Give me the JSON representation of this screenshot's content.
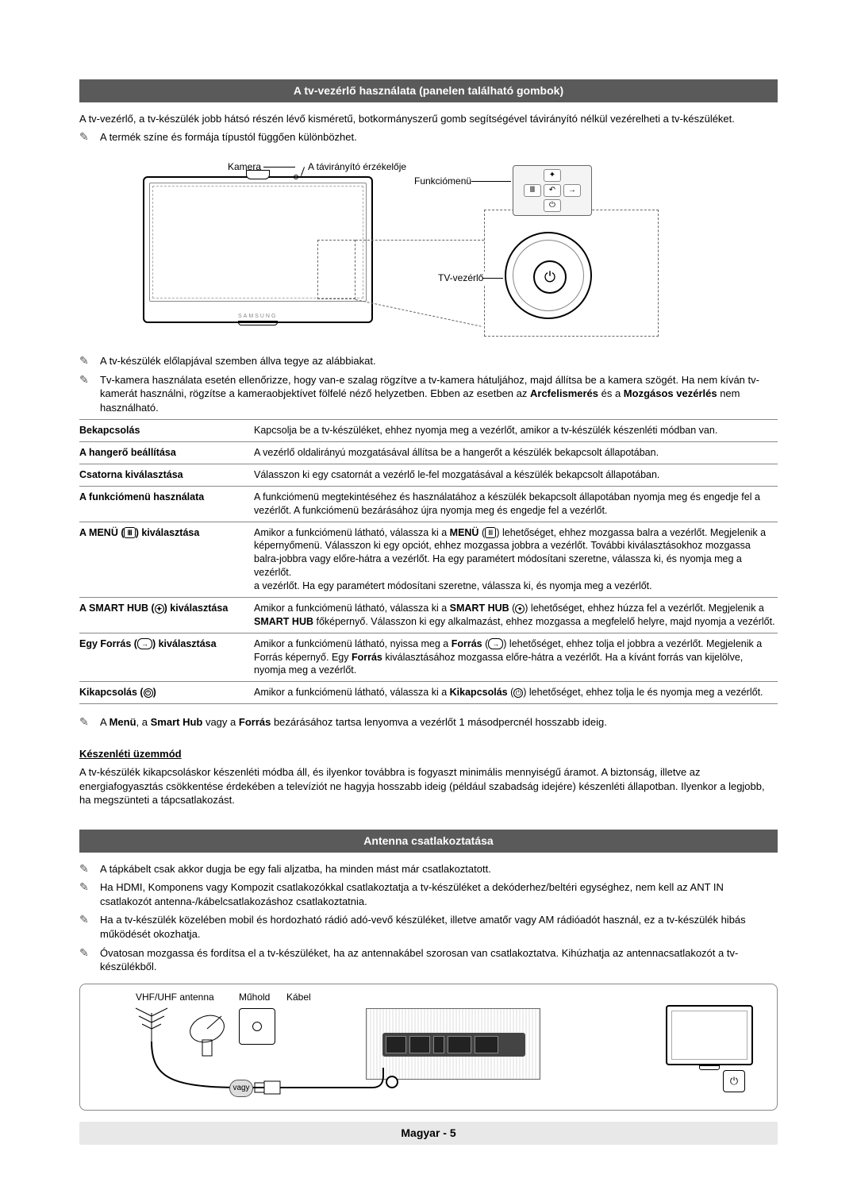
{
  "header1": "A tv-vezérlő használata (panelen található gombok)",
  "intro": "A tv-vezérlő, a tv-készülék jobb hátsó részén lévő kisméretű, botkormányszerű gomb segítségével távirányító nélkül vezérelheti a tv-készüléket.",
  "note_shape": "A termék színe és formája típustól függően különbözhet.",
  "labels": {
    "kamera": "Kamera",
    "sensor": "A távirányító érzékelője",
    "funkciomenu": "Funkciómenü",
    "tvvezerlo": "TV-vezérlő"
  },
  "notes_mid": [
    "A tv-készülék előlapjával szemben állva tegye az alábbiakat.",
    "Tv-kamera használata esetén ellenőrizze, hogy van-e szalag rögzítve a tv-kamera hátuljához, majd állítsa be a kamera szögét. Ha nem kíván tv-kamerát használni, rögzítse a kameraobjektívet fölfelé néző helyzetben. Ebben az esetben az <b>Arcfelismerés</b> és a <b>Mozgásos vezérlés</b> nem használható."
  ],
  "table": [
    {
      "label": "Bekapcsolás",
      "desc": "Kapcsolja be a tv-készüléket, ehhez nyomja meg a vezérlőt, amikor a tv-készülék készenléti módban van."
    },
    {
      "label": "A hangerő beállítása",
      "desc": "A vezérlő oldalirányú mozgatásával állítsa be a hangerőt a készülék bekapcsolt állapotában."
    },
    {
      "label": "Csatorna kiválasztása",
      "desc": "Válasszon ki egy csatornát a vezérlő le-fel mozgatásával a készülék bekapcsolt állapotában."
    },
    {
      "label": "A funkciómenü használata",
      "desc": "A funkciómenü megtekintéséhez és használatához a készülék bekapcsolt állapotában nyomja meg és engedje fel a vezérlőt. A funkciómenü bezárásához újra nyomja meg és engedje fel a vezérlőt."
    },
    {
      "label_html": "A MENÜ (<span class='inline-icon'>Ⅲ</span>) kiválasztása",
      "desc_html": "Amikor a funkciómenü látható, válassza ki a <b>MENÜ</b> (<span class='inline-icon'>Ⅲ</span>) lehetőséget, ehhez mozgassa balra a vezérlőt. Megjelenik a képernyőmenü. Válasszon ki egy opciót, ehhez mozgassa jobbra a vezérlőt. További kiválasztásokhoz mozgassa balra-jobbra vagy előre-hátra a vezérlőt. Ha egy paramétert módosítani szeretne, válassza ki, és nyomja meg a vezérlőt.<br>a vezérlőt. Ha egy paramétert módosítani szeretne, válassza ki, és nyomja meg a vezérlőt."
    },
    {
      "label_html": "A SMART HUB (<span class='inline-icon round'>✦</span>) kiválasztása",
      "desc_html": "Amikor a funkciómenü látható, válassza ki a <b>SMART HUB</b> (<span class='inline-icon round'>✦</span>) lehetőséget, ehhez húzza fel a vezérlőt. Megjelenik a <b>SMART HUB</b> főképernyő. Válasszon ki egy alkalmazást, ehhez mozgassa a megfelelő helyre, majd nyomja a vezérlőt."
    },
    {
      "label_html": "Egy Forrás (<span class='inline-icon pill'>→</span>) kiválasztása",
      "desc_html": "Amikor a funkciómenü látható, nyissa meg a <b>Forrás</b> (<span class='inline-icon pill'>→</span>) lehetőséget, ehhez tolja el jobbra a vezérlőt. Megjelenik a Forrás képernyő. Egy <b>Forrás</b> kiválasztásához mozgassa előre-hátra a vezérlőt. Ha a kívánt forrás van kijelölve, nyomja meg a vezérlőt."
    },
    {
      "label_html": "Kikapcsolás (<span class='inline-icon round'>⏻</span>)",
      "desc_html": "Amikor a funkciómenü látható, válassza ki a <b>Kikapcsolás</b> (<span class='inline-icon round'>⏻</span>) lehetőséget, ehhez tolja le és nyomja meg a vezérlőt."
    }
  ],
  "note_after_table": "A <b>Menü</b>, a <b>Smart Hub</b> vagy a <b>Forrás</b> bezárásához tartsa lenyomva a vezérlőt 1 másodpercnél hosszabb ideig.",
  "standby_heading": "Készenléti üzemmód",
  "standby_para": "A tv-készülék kikapcsoláskor készenléti módba áll, és ilyenkor továbbra is fogyaszt minimális mennyiségű áramot. A biztonság, illetve az energiafogyasztás csökkentése érdekében a televíziót ne hagyja hosszabb ideig (például szabadság idejére) készenléti állapotban. Ilyenkor a legjobb, ha megszünteti a tápcsatlakozást.",
  "header2": "Antenna csatlakoztatása",
  "ant_notes": [
    "A tápkábelt csak akkor dugja be egy fali aljzatba, ha minden mást már csatlakoztatott.",
    "Ha HDMI, Komponens vagy Kompozit csatlakozókkal csatlakoztatja a tv-készüléket a dekóderhez/beltéri egységhez, nem kell az ANT IN csatlakozót antenna-/kábelcsatlakozáshoz csatlakoztatnia.",
    "Ha a tv-készülék közelében mobil és hordozható rádió adó-vevő készüléket, illetve amatőr vagy AM rádióadót használ, ez a tv-készülék hibás működését okozhatja.",
    "Óvatosan mozgassa és fordítsa el a tv-készüléket, ha az antennakábel szorosan van csatlakoztatva. Kihúzhatja az antennacsatlakozót a tv-készülékből."
  ],
  "ant_labels": {
    "vhf": "VHF/UHF antenna",
    "muhold": "Műhold",
    "kabel": "Kábel",
    "vagy": "vagy"
  },
  "footer": "Magyar - 5",
  "colors": {
    "header_bg": "#5a5a5a",
    "border": "#888888",
    "footer_bg": "#e8e8e8"
  }
}
